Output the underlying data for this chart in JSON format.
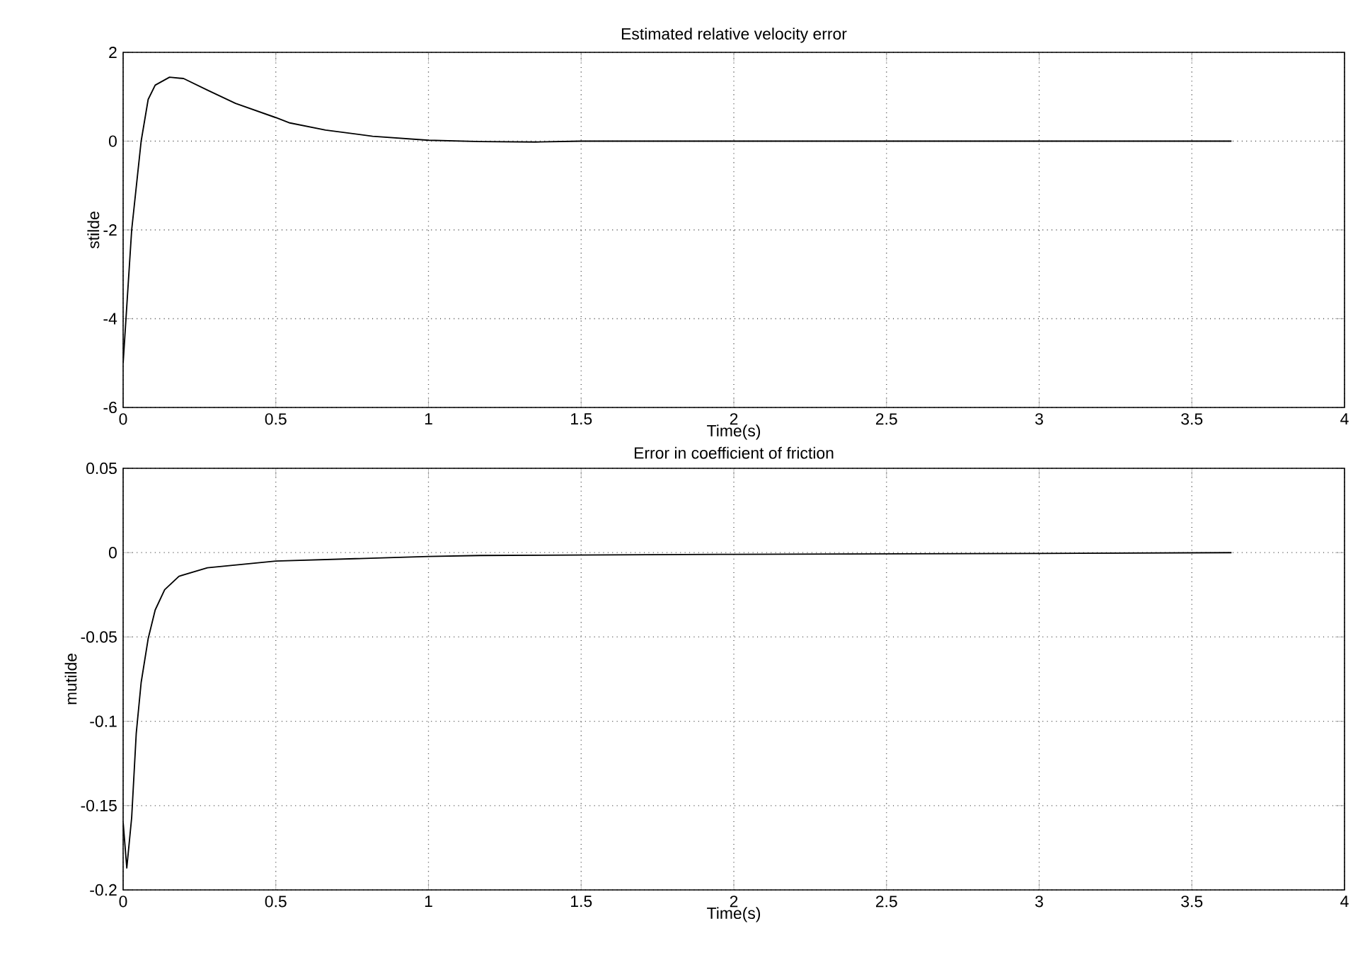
{
  "chart_data": [
    {
      "type": "line",
      "title": "Estimated relative velocity error",
      "xlabel": "Time(s)",
      "ylabel": "stilde",
      "grid": true,
      "xlim": [
        0,
        4
      ],
      "ylim": [
        -6,
        2
      ],
      "xticks": [
        0,
        0.5,
        1,
        1.5,
        2,
        2.5,
        3,
        3.5,
        4
      ],
      "yticks": [
        -6,
        -4,
        -2,
        0,
        2
      ],
      "x": [
        0,
        0.028,
        0.059,
        0.082,
        0.105,
        0.152,
        0.198,
        0.276,
        0.368,
        0.5,
        0.546,
        0.663,
        0.817,
        1.0,
        1.17,
        1.35,
        1.5,
        2.0,
        2.5,
        3.0,
        3.63
      ],
      "series": [
        {
          "color": "#000000",
          "values": [
            -5.0,
            -2.0,
            0.0,
            0.94,
            1.26,
            1.44,
            1.41,
            1.15,
            0.85,
            0.53,
            0.41,
            0.25,
            0.11,
            0.02,
            -0.01,
            -0.02,
            0.0,
            0.0,
            0.0,
            0.0,
            0.0
          ]
        }
      ]
    },
    {
      "type": "line",
      "title": "Error in coefficient of friction",
      "xlabel": "Time(s)",
      "ylabel": "mutilde",
      "grid": true,
      "xlim": [
        0,
        4
      ],
      "ylim": [
        -0.2,
        0.05
      ],
      "xticks": [
        0,
        0.5,
        1,
        1.5,
        2,
        2.5,
        3,
        3.5,
        4
      ],
      "yticks": [
        -0.2,
        -0.15,
        -0.1,
        -0.05,
        0,
        0.05
      ],
      "x": [
        0,
        0.012,
        0.028,
        0.043,
        0.059,
        0.082,
        0.105,
        0.136,
        0.183,
        0.276,
        0.5,
        1.0,
        1.17,
        2.0,
        3.0,
        3.63
      ],
      "series": [
        {
          "color": "#000000",
          "values": [
            -0.16,
            -0.187,
            -0.157,
            -0.107,
            -0.077,
            -0.051,
            -0.034,
            -0.022,
            -0.014,
            -0.009,
            -0.005,
            -0.0023,
            -0.0017,
            -0.001,
            -0.0005,
            0.0
          ]
        }
      ]
    }
  ]
}
